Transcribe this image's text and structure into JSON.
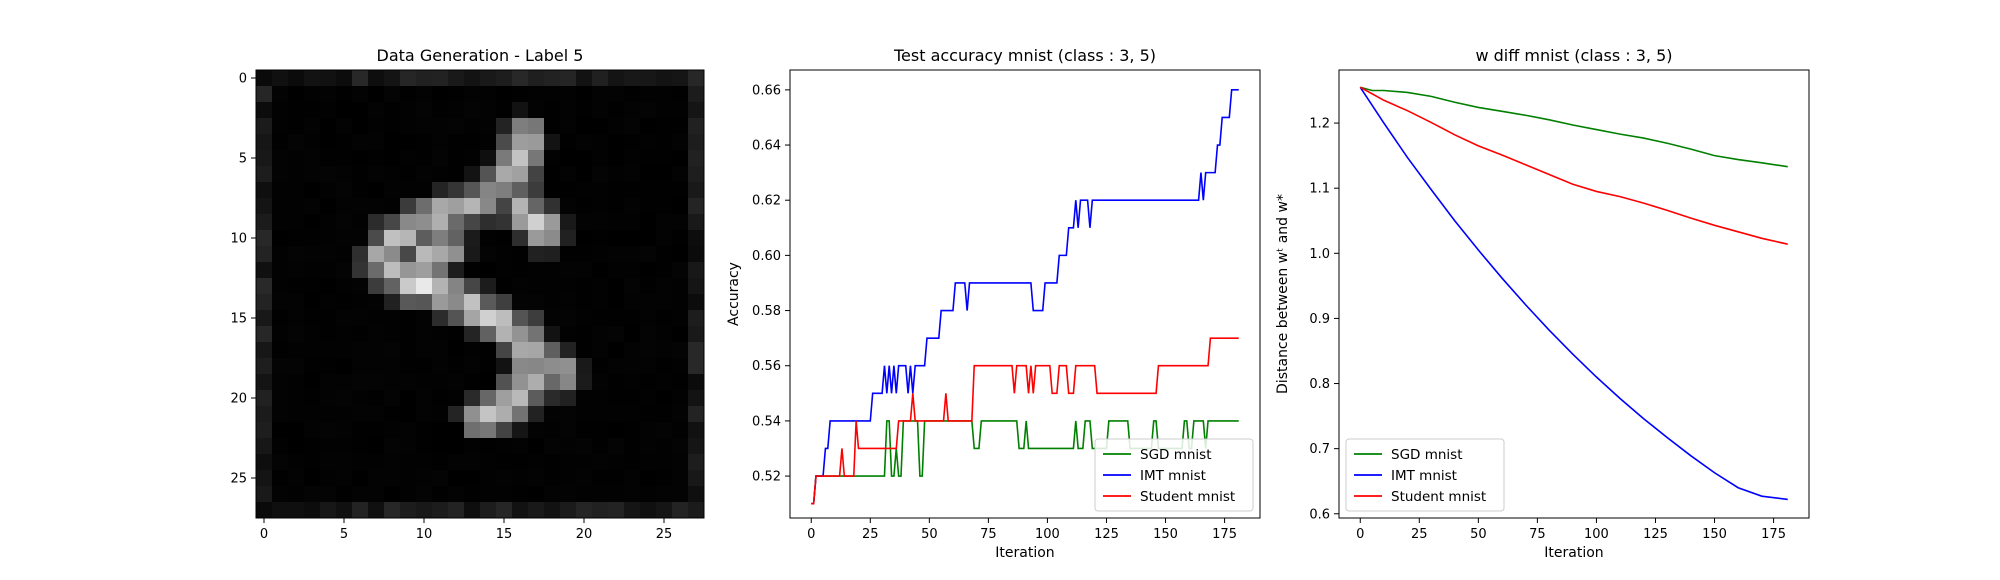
{
  "chart_data": [
    {
      "type": "heatmap",
      "title": "Data Generation - Label 5",
      "colormap": "gray",
      "xticks": [
        0,
        5,
        10,
        15,
        20,
        25
      ],
      "yticks": [
        0,
        5,
        10,
        15,
        20,
        25
      ],
      "xlim": [
        -0.5,
        27.5
      ],
      "ylim": [
        27.5,
        -0.5
      ],
      "strokes": [
        [
          [
            16.3,
            3.7
          ],
          [
            15.9,
            5.2
          ],
          [
            15.1,
            6.6
          ],
          [
            13.5,
            7.7
          ],
          [
            11.5,
            8.5
          ],
          [
            9.5,
            9.2
          ],
          [
            8.0,
            10.2
          ],
          [
            7.4,
            11.6
          ],
          [
            8.6,
            12.6
          ],
          [
            11.0,
            13.3
          ],
          [
            13.0,
            14.2
          ],
          [
            14.6,
            15.3
          ],
          [
            16.2,
            16.2
          ],
          [
            17.0,
            17.7
          ],
          [
            16.4,
            19.3
          ],
          [
            15.1,
            20.6
          ],
          [
            13.6,
            21.2
          ]
        ]
      ],
      "extra": [
        [
          [
            16.0,
            8.0
          ],
          [
            17.5,
            9.5
          ]
        ],
        [
          [
            10.0,
            11.5
          ],
          [
            11.5,
            10.5
          ]
        ],
        [
          [
            17.5,
            17.8
          ],
          [
            18.5,
            18.5
          ]
        ]
      ]
    },
    {
      "type": "line",
      "title": "Test accuracy mnist (class : 3, 5)",
      "xlabel": "Iteration",
      "ylabel": "Accuracy",
      "xlim": [
        -9,
        190
      ],
      "ylim": [
        0.5048,
        0.6672
      ],
      "xticks": [
        0,
        25,
        50,
        75,
        100,
        125,
        150,
        175
      ],
      "yticks": [
        0.52,
        0.54,
        0.56,
        0.58,
        0.6,
        0.62,
        0.64,
        0.66
      ],
      "legend": "lower-right",
      "series": [
        {
          "name": "SGD mnist",
          "color": "#008000",
          "points": [
            [
              0,
              0.51
            ],
            [
              1,
              0.51
            ],
            [
              2,
              0.52
            ],
            [
              31,
              0.52
            ],
            [
              32,
              0.54
            ],
            [
              33,
              0.54
            ],
            [
              34,
              0.52
            ],
            [
              35,
              0.52
            ],
            [
              36,
              0.53
            ],
            [
              37,
              0.52
            ],
            [
              38,
              0.52
            ],
            [
              39,
              0.54
            ],
            [
              45,
              0.54
            ],
            [
              46,
              0.52
            ],
            [
              47,
              0.52
            ],
            [
              48,
              0.54
            ],
            [
              68,
              0.54
            ],
            [
              69,
              0.53
            ],
            [
              71,
              0.53
            ],
            [
              72,
              0.54
            ],
            [
              87,
              0.54
            ],
            [
              88,
              0.53
            ],
            [
              90,
              0.53
            ],
            [
              91,
              0.54
            ],
            [
              92,
              0.53
            ],
            [
              111,
              0.53
            ],
            [
              112,
              0.54
            ],
            [
              113,
              0.53
            ],
            [
              115,
              0.53
            ],
            [
              116,
              0.54
            ],
            [
              118,
              0.54
            ],
            [
              119,
              0.53
            ],
            [
              125,
              0.53
            ],
            [
              126,
              0.54
            ],
            [
              134,
              0.54
            ],
            [
              135,
              0.53
            ],
            [
              144,
              0.53
            ],
            [
              145,
              0.54
            ],
            [
              146,
              0.54
            ],
            [
              147,
              0.53
            ],
            [
              157,
              0.53
            ],
            [
              158,
              0.54
            ],
            [
              159,
              0.54
            ],
            [
              160,
              0.53
            ],
            [
              161,
              0.53
            ],
            [
              162,
              0.54
            ],
            [
              166,
              0.54
            ],
            [
              167,
              0.53
            ],
            [
              168,
              0.54
            ],
            [
              181,
              0.54
            ]
          ]
        },
        {
          "name": "IMT mnist",
          "color": "#0000ff",
          "points": [
            [
              0,
              0.51
            ],
            [
              1,
              0.51
            ],
            [
              2,
              0.52
            ],
            [
              5,
              0.52
            ],
            [
              6,
              0.53
            ],
            [
              7,
              0.53
            ],
            [
              8,
              0.54
            ],
            [
              25,
              0.54
            ],
            [
              26,
              0.55
            ],
            [
              30,
              0.55
            ],
            [
              31,
              0.56
            ],
            [
              32,
              0.55
            ],
            [
              33,
              0.56
            ],
            [
              34,
              0.55
            ],
            [
              35,
              0.56
            ],
            [
              36,
              0.55
            ],
            [
              37,
              0.56
            ],
            [
              40,
              0.56
            ],
            [
              41,
              0.55
            ],
            [
              42,
              0.56
            ],
            [
              43,
              0.55
            ],
            [
              44,
              0.56
            ],
            [
              48,
              0.56
            ],
            [
              49,
              0.57
            ],
            [
              54,
              0.57
            ],
            [
              55,
              0.58
            ],
            [
              60,
              0.58
            ],
            [
              61,
              0.59
            ],
            [
              65,
              0.59
            ],
            [
              66,
              0.58
            ],
            [
              67,
              0.59
            ],
            [
              93,
              0.59
            ],
            [
              94,
              0.58
            ],
            [
              98,
              0.58
            ],
            [
              99,
              0.59
            ],
            [
              104,
              0.59
            ],
            [
              105,
              0.6
            ],
            [
              108,
              0.6
            ],
            [
              109,
              0.61
            ],
            [
              111,
              0.61
            ],
            [
              112,
              0.62
            ],
            [
              113,
              0.61
            ],
            [
              114,
              0.62
            ],
            [
              117,
              0.62
            ],
            [
              118,
              0.61
            ],
            [
              119,
              0.62
            ],
            [
              164,
              0.62
            ],
            [
              165,
              0.63
            ],
            [
              166,
              0.62
            ],
            [
              167,
              0.63
            ],
            [
              171,
              0.63
            ],
            [
              172,
              0.64
            ],
            [
              173,
              0.64
            ],
            [
              174,
              0.65
            ],
            [
              177,
              0.65
            ],
            [
              178,
              0.66
            ],
            [
              181,
              0.66
            ]
          ]
        },
        {
          "name": "Student mnist",
          "color": "#ff0000",
          "points": [
            [
              0,
              0.51
            ],
            [
              1,
              0.51
            ],
            [
              2,
              0.52
            ],
            [
              12,
              0.52
            ],
            [
              13,
              0.53
            ],
            [
              14,
              0.52
            ],
            [
              18,
              0.52
            ],
            [
              19,
              0.54
            ],
            [
              20,
              0.53
            ],
            [
              36,
              0.53
            ],
            [
              37,
              0.54
            ],
            [
              42,
              0.54
            ],
            [
              43,
              0.55
            ],
            [
              44,
              0.54
            ],
            [
              56,
              0.54
            ],
            [
              57,
              0.55
            ],
            [
              58,
              0.54
            ],
            [
              68,
              0.54
            ],
            [
              69,
              0.56
            ],
            [
              85,
              0.56
            ],
            [
              86,
              0.55
            ],
            [
              87,
              0.56
            ],
            [
              91,
              0.56
            ],
            [
              92,
              0.55
            ],
            [
              93,
              0.56
            ],
            [
              94,
              0.55
            ],
            [
              95,
              0.56
            ],
            [
              101,
              0.56
            ],
            [
              102,
              0.55
            ],
            [
              104,
              0.55
            ],
            [
              105,
              0.56
            ],
            [
              108,
              0.56
            ],
            [
              109,
              0.55
            ],
            [
              111,
              0.55
            ],
            [
              112,
              0.56
            ],
            [
              120,
              0.56
            ],
            [
              121,
              0.55
            ],
            [
              146,
              0.55
            ],
            [
              147,
              0.56
            ],
            [
              168,
              0.56
            ],
            [
              169,
              0.57
            ],
            [
              181,
              0.57
            ]
          ]
        }
      ]
    },
    {
      "type": "line",
      "title": "w diff mnist (class : 3, 5)",
      "xlabel": "Iteration",
      "ylabel": "Distance between wᵗ and w*",
      "xlim": [
        -9,
        190
      ],
      "ylim": [
        0.5935,
        1.2815
      ],
      "xticks": [
        0,
        25,
        50,
        75,
        100,
        125,
        150,
        175
      ],
      "yticks": [
        0.6,
        0.7,
        0.8,
        0.9,
        1.0,
        1.1,
        1.2
      ],
      "legend": "lower-left",
      "series": [
        {
          "name": "SGD mnist",
          "color": "#008000",
          "points": [
            [
              0,
              1.255
            ],
            [
              5,
              1.25
            ],
            [
              10,
              1.25
            ],
            [
              20,
              1.247
            ],
            [
              30,
              1.241
            ],
            [
              40,
              1.232
            ],
            [
              50,
              1.224
            ],
            [
              60,
              1.218
            ],
            [
              70,
              1.212
            ],
            [
              80,
              1.205
            ],
            [
              90,
              1.197
            ],
            [
              100,
              1.19
            ],
            [
              110,
              1.183
            ],
            [
              120,
              1.177
            ],
            [
              130,
              1.169
            ],
            [
              140,
              1.16
            ],
            [
              150,
              1.15
            ],
            [
              160,
              1.144
            ],
            [
              170,
              1.139
            ],
            [
              181,
              1.133
            ]
          ]
        },
        {
          "name": "IMT mnist",
          "color": "#0000ff",
          "points": [
            [
              0,
              1.255
            ],
            [
              10,
              1.2
            ],
            [
              20,
              1.147
            ],
            [
              30,
              1.098
            ],
            [
              40,
              1.05
            ],
            [
              50,
              1.005
            ],
            [
              60,
              0.962
            ],
            [
              70,
              0.921
            ],
            [
              80,
              0.882
            ],
            [
              90,
              0.845
            ],
            [
              100,
              0.81
            ],
            [
              110,
              0.777
            ],
            [
              120,
              0.746
            ],
            [
              130,
              0.717
            ],
            [
              140,
              0.689
            ],
            [
              150,
              0.663
            ],
            [
              160,
              0.64
            ],
            [
              170,
              0.627
            ],
            [
              181,
              0.622
            ]
          ]
        },
        {
          "name": "Student mnist",
          "color": "#ff0000",
          "points": [
            [
              0,
              1.255
            ],
            [
              10,
              1.235
            ],
            [
              20,
              1.219
            ],
            [
              30,
              1.201
            ],
            [
              40,
              1.182
            ],
            [
              50,
              1.165
            ],
            [
              60,
              1.151
            ],
            [
              70,
              1.136
            ],
            [
              80,
              1.121
            ],
            [
              90,
              1.106
            ],
            [
              100,
              1.095
            ],
            [
              110,
              1.087
            ],
            [
              120,
              1.077
            ],
            [
              130,
              1.066
            ],
            [
              140,
              1.054
            ],
            [
              150,
              1.043
            ],
            [
              160,
              1.033
            ],
            [
              170,
              1.023
            ],
            [
              181,
              1.014
            ]
          ]
        }
      ]
    }
  ]
}
